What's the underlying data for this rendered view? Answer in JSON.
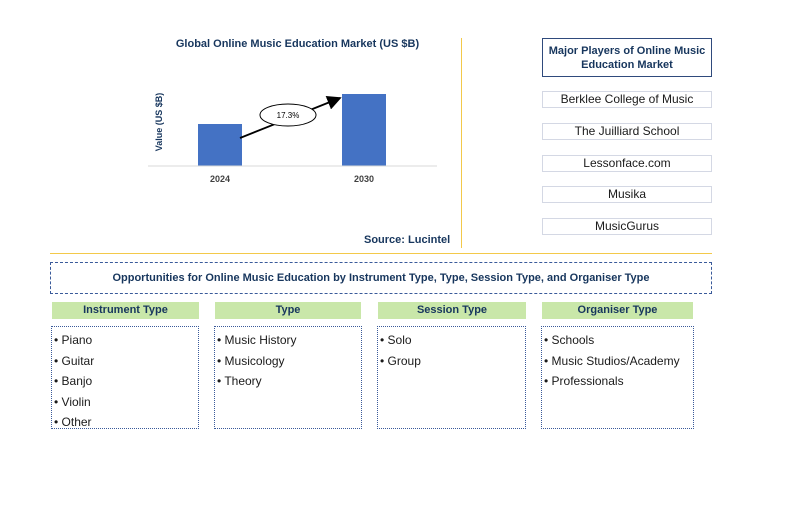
{
  "chart_data": {
    "type": "bar",
    "title": "Global Online Music Education Market (US $B)",
    "ylabel": "Value (US $B)",
    "categories": [
      "2024",
      "2030"
    ],
    "values": [
      0.42,
      0.72
    ],
    "ylim": [
      0,
      1.0
    ],
    "bar_color": "#4472c4",
    "annotation": "17.3%",
    "source": "Source: Lucintel"
  },
  "players": {
    "title": "Major Players of Online Music Education Market",
    "items": [
      "Berklee College of Music",
      "The Juilliard School",
      "Lessonface.com",
      "Musika",
      "MusicGurus"
    ]
  },
  "opportunities": {
    "title": "Opportunities for Online Music Education by Instrument Type, Type, Session Type, and Organiser Type",
    "segments": [
      {
        "header": "Instrument Type",
        "items": [
          "• Piano",
          "• Guitar",
          "• Banjo",
          "• Violin",
          "• Other"
        ]
      },
      {
        "header": "Type",
        "items": [
          "• Music History",
          "• Musicology",
          "• Theory"
        ]
      },
      {
        "header": "Session Type",
        "items": [
          "• Solo",
          "• Group"
        ]
      },
      {
        "header": "Organiser Type",
        "items": [
          "• Schools",
          "• Music Studios/Academy",
          "• Professionals"
        ]
      }
    ]
  }
}
